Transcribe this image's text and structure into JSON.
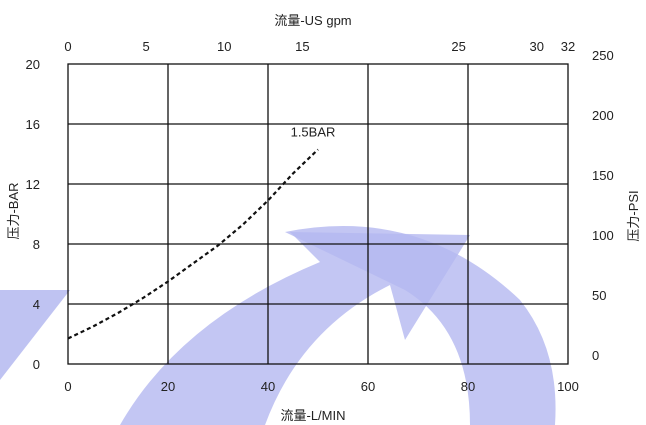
{
  "chart_data": {
    "type": "line",
    "title": "",
    "xlabel_bottom": "流量-L/MIN",
    "xlabel_top": "流量-US gpm",
    "ylabel_left": "压力-BAR",
    "ylabel_right": "压力-PSI",
    "xlim": [
      0,
      100
    ],
    "ylim": [
      0,
      20
    ],
    "grid": true,
    "x_ticks": [
      0,
      20,
      40,
      60,
      80,
      100
    ],
    "y_ticks_left": [
      0,
      4,
      8,
      12,
      16,
      20
    ],
    "top_ticks": [
      {
        "label": "0",
        "gpm": 0
      },
      {
        "label": "5",
        "gpm": 5
      },
      {
        "label": "10",
        "gpm": 10
      },
      {
        "label": "15",
        "gpm": 15
      },
      {
        "label": "25",
        "gpm": 25
      },
      {
        "label": "30",
        "gpm": 30
      },
      {
        "label": "32",
        "gpm": 32
      }
    ],
    "right_ticks": [
      {
        "label": "0",
        "psi": 0
      },
      {
        "label": "50",
        "psi": 50
      },
      {
        "label": "100",
        "psi": 100
      },
      {
        "label": "150",
        "psi": 150
      },
      {
        "label": "200",
        "psi": 200
      },
      {
        "label": "250",
        "psi": 250
      }
    ],
    "series": [
      {
        "name": "1.5BAR",
        "style": "dashed",
        "x": [
          0,
          5,
          10,
          15,
          20,
          25,
          30,
          35,
          40,
          45,
          50
        ],
        "y": [
          1.7,
          2.5,
          3.4,
          4.4,
          5.5,
          6.7,
          7.9,
          9.3,
          10.9,
          12.7,
          14.3
        ]
      }
    ],
    "colors": {
      "grid": "#111111",
      "series": "#111111",
      "watermark": "#b4b8f0"
    }
  }
}
